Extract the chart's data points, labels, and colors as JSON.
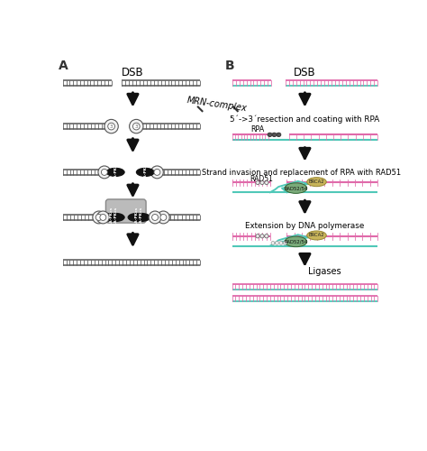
{
  "bg_color": "#ffffff",
  "panel_A_label": "A",
  "panel_B_label": "B",
  "dsb_label": "DSB",
  "mrn_label": "MRN-complex",
  "step1B_label": "5´->3´resection and coating with RPA",
  "rpa_label": "RPA",
  "step2B_label": "Strand invasion and replacement of RPA with RAD51",
  "rad51_label": "RAD51",
  "brca2_label": "BRCA2",
  "rad5254_label": "RAD52/54",
  "step3B_label": "Extension by DNA polymerase",
  "ligases_label": "Ligases",
  "gray": "#555555",
  "pink": "#e06aaa",
  "cyan": "#50c8b8",
  "ku_face": "#f2f2f2",
  "ku_edge": "#555555",
  "dnapk_face": "#111111",
  "dnapk_edge": "#111111",
  "synapse_face": "#bbbbbb",
  "synapse_edge": "#888888",
  "rad5254_color": "#7aab7a",
  "brca2_color": "#c8b45a",
  "rpa_dot_color": "#888888",
  "rpa_dot_color2": "#555555",
  "new_synth_color": "#dddddd",
  "arrow_color": "#111111"
}
